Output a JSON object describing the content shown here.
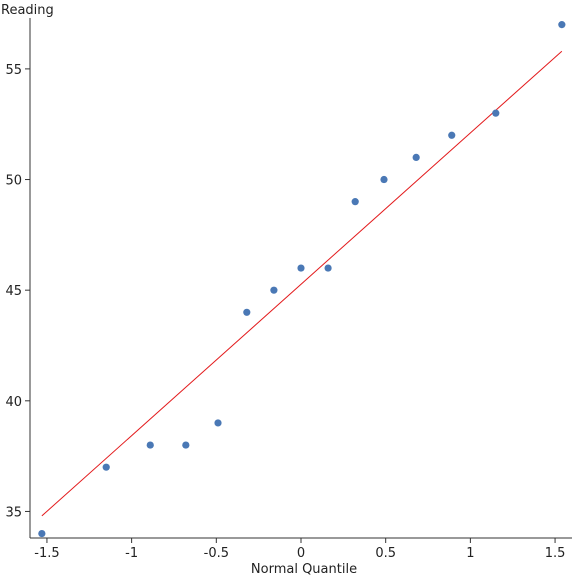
{
  "chart_data": {
    "type": "scatter",
    "title": "",
    "xlabel": "Normal Quantile",
    "ylabel": "Reading",
    "xlim": [
      -1.6,
      1.6
    ],
    "ylim": [
      33.8,
      57.3
    ],
    "x_ticks": [
      -1.5,
      -1,
      -0.5,
      0,
      0.5,
      1,
      1.5
    ],
    "x_tick_labels": [
      "-1.5",
      "-1",
      "-0.5",
      "0",
      "0.5",
      "1",
      "1.5"
    ],
    "y_ticks": [
      35,
      40,
      45,
      50,
      55
    ],
    "y_tick_labels": [
      "35",
      "40",
      "45",
      "50",
      "55"
    ],
    "grid": false,
    "points": [
      {
        "x": -1.53,
        "y": 34
      },
      {
        "x": -1.15,
        "y": 37
      },
      {
        "x": -0.89,
        "y": 38
      },
      {
        "x": -0.68,
        "y": 38
      },
      {
        "x": -0.49,
        "y": 39
      },
      {
        "x": -0.32,
        "y": 44
      },
      {
        "x": -0.16,
        "y": 45
      },
      {
        "x": 0.0,
        "y": 46
      },
      {
        "x": 0.16,
        "y": 46
      },
      {
        "x": 0.32,
        "y": 49
      },
      {
        "x": 0.49,
        "y": 50
      },
      {
        "x": 0.68,
        "y": 51
      },
      {
        "x": 0.89,
        "y": 52
      },
      {
        "x": 1.15,
        "y": 53
      },
      {
        "x": 1.54,
        "y": 57
      }
    ],
    "reference_line": {
      "x": [
        -1.53,
        1.54
      ],
      "y": [
        34.8,
        55.8
      ]
    },
    "colors": {
      "points": "#4a78b5",
      "line": "#e31a1c",
      "axis": "#333333"
    }
  }
}
